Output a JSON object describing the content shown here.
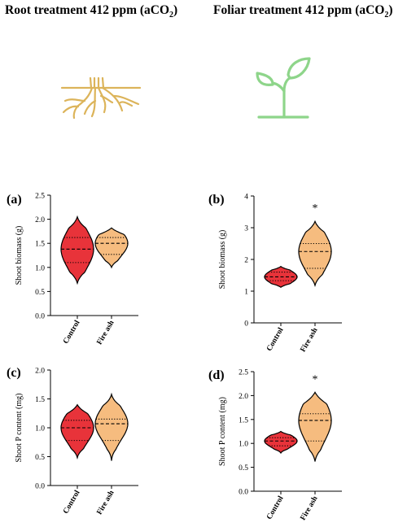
{
  "headings": {
    "root": {
      "prefix": "Root treatment 412 ppm (aCO",
      "sub": "2",
      "suffix": ")"
    },
    "foliar": {
      "prefix": "Foliar treatment 412 ppm (aCO",
      "sub": "2",
      "suffix": ")"
    }
  },
  "icons": {
    "root": "roots-icon",
    "foliar": "seedling-icon"
  },
  "colors": {
    "control": "#e8333a",
    "fire_ash": "#f6bc7f",
    "root_icon": "#dcb45a",
    "leaf_icon": "#8ed58a"
  },
  "chart_data": [
    {
      "type": "violin",
      "panel": "(a)",
      "ylabel": "Shoot biomass (g)",
      "ylim": [
        0,
        2.5
      ],
      "yticks": [
        "0.0",
        "0.5",
        "1.0",
        "1.5",
        "2.0",
        "2.5"
      ],
      "categories": [
        "Control",
        "Fire ash"
      ],
      "series": [
        {
          "category": "Control",
          "min": 0.67,
          "max": 2.05,
          "q1": 1.1,
          "median": 1.38,
          "q3": 1.62
        },
        {
          "category": "Fire ash",
          "min": 1.0,
          "max": 1.82,
          "q1": 1.27,
          "median": 1.5,
          "q3": 1.62
        }
      ],
      "significance": ""
    },
    {
      "type": "violin",
      "panel": "(b)",
      "ylabel": "Shoot biomass (g)",
      "ylim": [
        0,
        4
      ],
      "yticks": [
        "0",
        "1",
        "2",
        "3",
        "4"
      ],
      "categories": [
        "Control",
        "Fire ash"
      ],
      "series": [
        {
          "category": "Control",
          "min": 1.12,
          "max": 1.78,
          "q1": 1.33,
          "median": 1.45,
          "q3": 1.6
        },
        {
          "category": "Fire ash",
          "min": 1.18,
          "max": 3.2,
          "q1": 1.72,
          "median": 2.25,
          "q3": 2.5
        }
      ],
      "significance": "*"
    },
    {
      "type": "violin",
      "panel": "(c)",
      "ylabel": "Shoot P content (mg)",
      "ylim": [
        0,
        2.0
      ],
      "yticks": [
        "0.0",
        "0.5",
        "1.0",
        "1.5",
        "2.0"
      ],
      "categories": [
        "Control",
        "Fire ash"
      ],
      "series": [
        {
          "category": "Control",
          "min": 0.48,
          "max": 1.4,
          "q1": 0.78,
          "median": 1.0,
          "q3": 1.13
        },
        {
          "category": "Fire ash",
          "min": 0.43,
          "max": 1.58,
          "q1": 0.78,
          "median": 1.07,
          "q3": 1.15
        }
      ],
      "significance": ""
    },
    {
      "type": "violin",
      "panel": "(d)",
      "ylabel": "Shoot P content (mg)",
      "ylim": [
        0,
        2.5
      ],
      "yticks": [
        "0.0",
        "0.5",
        "1.0",
        "1.5",
        "2.0",
        "2.5"
      ],
      "categories": [
        "Control",
        "Fire ash"
      ],
      "series": [
        {
          "category": "Control",
          "min": 0.8,
          "max": 1.25,
          "q1": 0.95,
          "median": 1.05,
          "q3": 1.12
        },
        {
          "category": "Fire ash",
          "min": 0.62,
          "max": 2.07,
          "q1": 1.05,
          "median": 1.48,
          "q3": 1.62
        }
      ],
      "significance": "*"
    }
  ]
}
